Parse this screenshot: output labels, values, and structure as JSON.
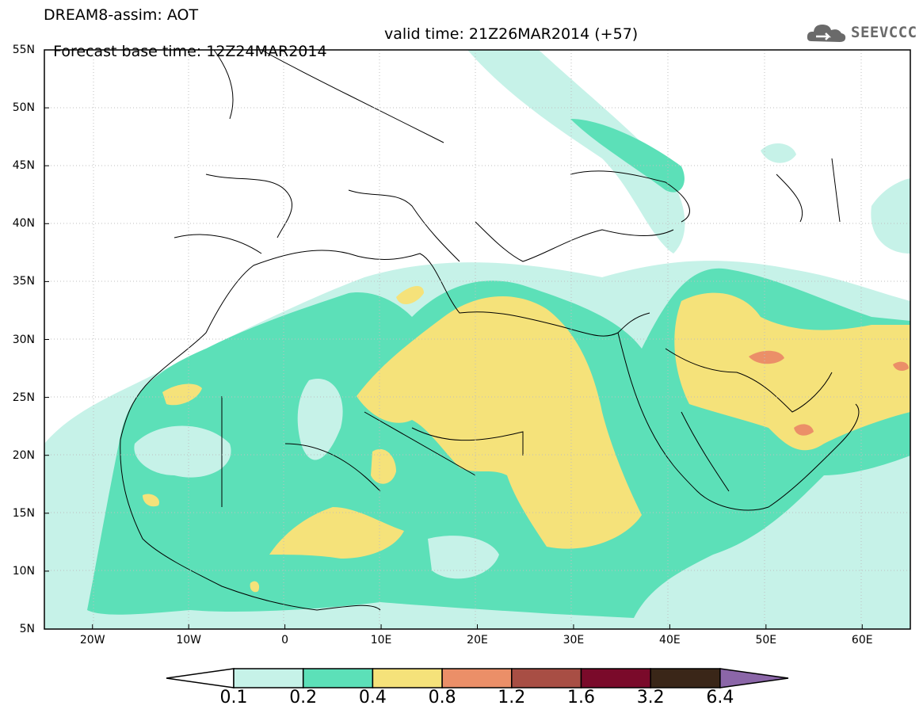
{
  "header": {
    "line1": "DREAM8-assim: AOT",
    "line2_base": "Forecast base time: 12Z24MAR2014",
    "line2_valid": "valid time: 21Z26MAR2014 (+57)"
  },
  "logo": {
    "text": "SEEVCCC",
    "icon": "cloud-icon"
  },
  "map": {
    "lon_range": [
      -25,
      65
    ],
    "lat_range": [
      5,
      55
    ],
    "lon_ticks": [
      {
        "lon": -20,
        "label": "20W"
      },
      {
        "lon": -10,
        "label": "10W"
      },
      {
        "lon": 0,
        "label": "0"
      },
      {
        "lon": 10,
        "label": "10E"
      },
      {
        "lon": 20,
        "label": "20E"
      },
      {
        "lon": 30,
        "label": "30E"
      },
      {
        "lon": 40,
        "label": "40E"
      },
      {
        "lon": 50,
        "label": "50E"
      },
      {
        "lon": 60,
        "label": "60E"
      }
    ],
    "lat_ticks": [
      {
        "lat": 55,
        "label": "55N"
      },
      {
        "lat": 50,
        "label": "50N"
      },
      {
        "lat": 45,
        "label": "45N"
      },
      {
        "lat": 40,
        "label": "40N"
      },
      {
        "lat": 35,
        "label": "35N"
      },
      {
        "lat": 30,
        "label": "30N"
      },
      {
        "lat": 25,
        "label": "25N"
      },
      {
        "lat": 20,
        "label": "20N"
      },
      {
        "lat": 15,
        "label": "15N"
      },
      {
        "lat": 10,
        "label": "10N"
      },
      {
        "lat": 5,
        "label": "5N"
      }
    ],
    "grid": true,
    "colors": {
      "c01": "#c6f2e8",
      "c02": "#5ce0b8",
      "c04": "#f5e27a",
      "c08": "#eb8f68",
      "c12": "#a84e44",
      "c16": "#7a0a2a",
      "c32": "#3a2618",
      "c64": "#8b66a8"
    }
  },
  "colorbar": {
    "colors": [
      "#c6f2e8",
      "#5ce0b8",
      "#f5e27a",
      "#eb8f68",
      "#a84e44",
      "#7a0a2a",
      "#3a2618"
    ],
    "over_color": "#8b66a8",
    "under_color": "#ffffff",
    "labels": [
      "0.1",
      "0.2",
      "0.4",
      "0.8",
      "1.2",
      "1.6",
      "3.2",
      "6.4"
    ]
  }
}
